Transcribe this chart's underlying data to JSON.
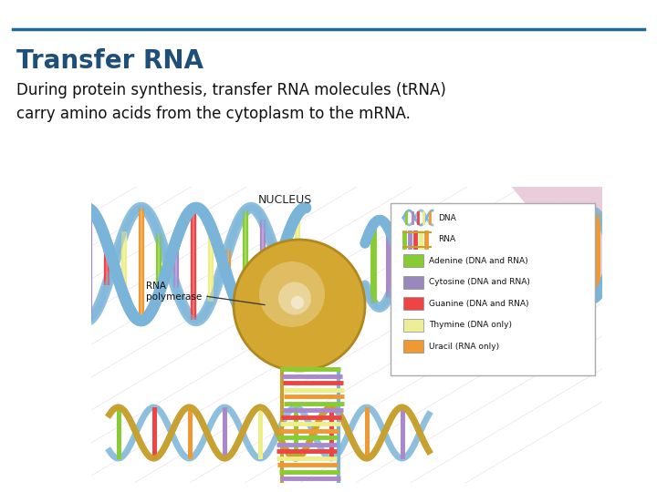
{
  "background_color": "#ffffff",
  "top_line_color": "#1f6b96",
  "title": "Transfer RNA",
  "title_color": "#1f4e79",
  "title_fontsize": 20,
  "body_text": "During protein synthesis, transfer RNA molecules (tRNA)\ncarry amino acids from the cytoplasm to the mRNA.",
  "body_color": "#111111",
  "body_fontsize": 12,
  "img_bg_color": "#c090c0",
  "helix_blue": "#7ab4d8",
  "helix_gold": "#c8a030",
  "poly_color": "#d4aa30",
  "rung_colors": [
    "#88cc33",
    "#aa88cc",
    "#ee4444",
    "#eeee88",
    "#ee9933"
  ],
  "legend_items": [
    {
      "label": "DNA",
      "type": "dna"
    },
    {
      "label": "RNA",
      "type": "rna"
    },
    {
      "label": "Adenine (DNA and RNA)",
      "color": "#88cc33",
      "type": "rect"
    },
    {
      "label": "Cytosine (DNA and RNA)",
      "color": "#9988bb",
      "type": "rect"
    },
    {
      "label": "Guanine (DNA and RNA)",
      "color": "#ee4444",
      "type": "rect"
    },
    {
      "label": "Thymine (DNA only)",
      "color": "#eeee99",
      "type": "rect"
    },
    {
      "label": "Uracil (RNA only)",
      "color": "#ee9933",
      "type": "rect"
    }
  ]
}
